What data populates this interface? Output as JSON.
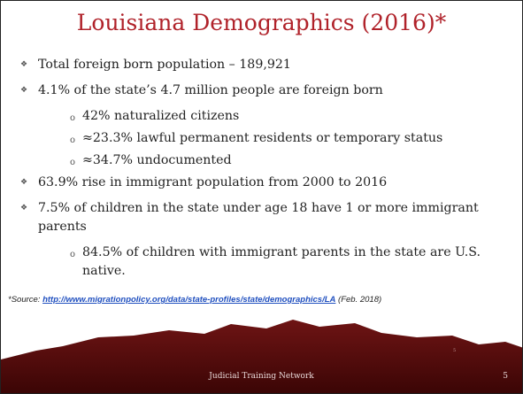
{
  "title": "Louisiana Demographics (2016)*",
  "bullets": [
    {
      "text": "Total foreign born population – 189,921"
    },
    {
      "text": "4.1% of the state’s 4.7 million people are foreign born",
      "sub": [
        "42% naturalized citizens",
        "≈23.3% lawful permanent residents or temporary status",
        "≈34.7% undocumented"
      ]
    },
    {
      "text": "63.9% rise in immigrant population from 2000 to 2016"
    },
    {
      "text": "7.5% of children in the state under age 18 have 1 or more immigrant parents",
      "sub": [
        "84.5% of children with immigrant parents in the state are U.S. native."
      ]
    }
  ],
  "source": {
    "prefix": "*Source: ",
    "link": "http://www.migrationpolicy.org/data/state-profiles/state/demographics/LA",
    "suffix": " (Feb. 2018)"
  },
  "footer": {
    "text": "Judicial Training Network",
    "page": "5",
    "mark": "5"
  }
}
